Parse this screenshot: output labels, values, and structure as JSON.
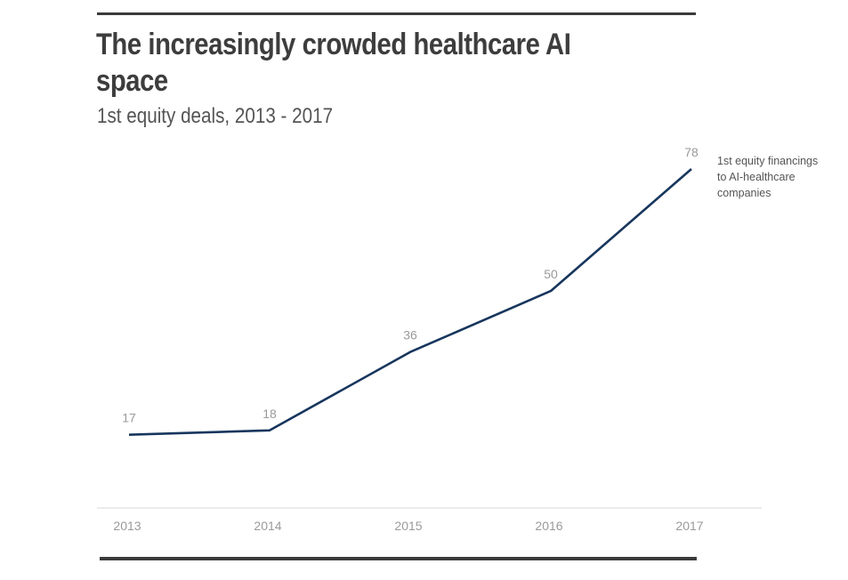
{
  "header": {
    "title": "The increasingly crowded healthcare AI space",
    "subtitle": "1st equity deals, 2013 - 2017"
  },
  "colors": {
    "line": "#17365d",
    "axis": "#e6e6e6",
    "rules": "#3b3b3b"
  },
  "chart_data": {
    "type": "line",
    "title": "The increasingly crowded healthcare AI space",
    "subtitle": "1st equity deals, 2013 - 2017",
    "xlabel": "",
    "ylabel": "",
    "categories": [
      "2013",
      "2014",
      "2015",
      "2016",
      "2017"
    ],
    "series": [
      {
        "name": "1st equity financings to AI-healthcare companies",
        "values": [
          17,
          18,
          36,
          50,
          78
        ],
        "data_labels": [
          "17",
          "18",
          "36",
          "50",
          "78"
        ]
      }
    ],
    "annotation_lines": [
      "1st equity financings",
      "to  AI-healthcare",
      "companies"
    ],
    "ylim": [
      0,
      78
    ],
    "grid": false,
    "legend": "right-of-last-point"
  }
}
